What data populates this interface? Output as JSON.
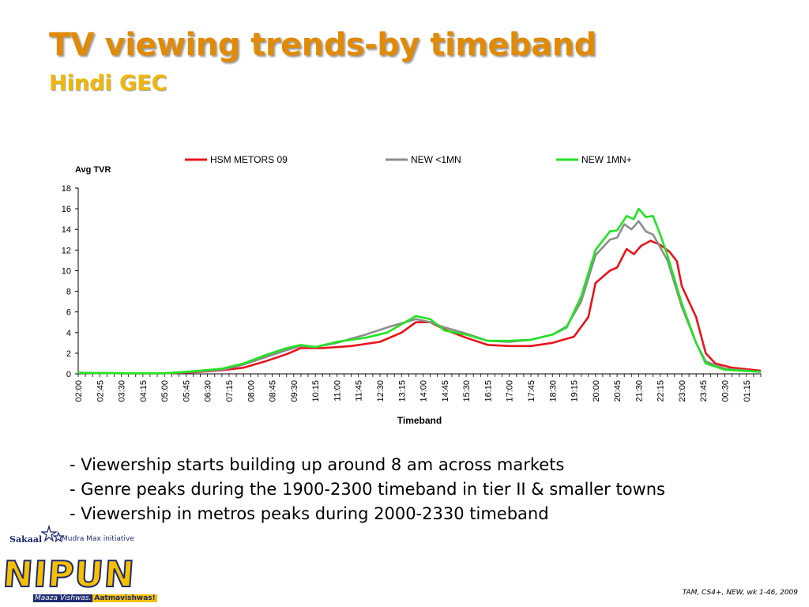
{
  "slide": {
    "title": "TV viewing trends-by timeband",
    "subtitle": "Hindi GEC",
    "bullets": [
      "- Viewership starts building up around 8 am across markets",
      "- Genre peaks during the 1900-2300 timeband in tier II & smaller towns",
      "- Viewership in metros peaks during 2000-2330 timeband"
    ],
    "source": "TAM, CS4+, NEW, wk 1-46, 2009",
    "logo": {
      "brand": "Sakaal",
      "initiative": "Mudra Max initiative",
      "name": "NIPUN",
      "tagline_part1": "Maaza Vishwas.",
      "tagline_part2": "Aatmavishwas!"
    }
  },
  "colors": {
    "title": "#e08a06",
    "subtitle": "#f2b705",
    "hsm": "#e8141b",
    "new_lt_1mn": "#8c8c8c",
    "new_1mn_plus": "#22e322"
  },
  "chart_data": {
    "type": "line",
    "ylabel": "Avg TVR",
    "xlabel": "Timeband",
    "ylim": [
      0,
      18
    ],
    "y_ticks": [
      0,
      2,
      4,
      6,
      8,
      10,
      12,
      14,
      16,
      18
    ],
    "x_tick_labels": [
      "02:00",
      "02:45",
      "03:30",
      "04:15",
      "05:00",
      "05:45",
      "06:30",
      "07:15",
      "08:00",
      "08:45",
      "09:30",
      "10:15",
      "11:00",
      "11:45",
      "12:30",
      "13:15",
      "14:00",
      "14:45",
      "15:30",
      "16:15",
      "17:00",
      "17:45",
      "18:30",
      "19:15",
      "20:00",
      "20:45",
      "21:30",
      "22:15",
      "23:00",
      "23:45",
      "00:30",
      "01:15"
    ],
    "x_tick_interval_minutes": 45,
    "x_range": [
      "02:00",
      "01:45"
    ],
    "legend_position": "top",
    "grid": false,
    "series": [
      {
        "name": "HSM METORS 09",
        "color": "#e8141b",
        "points": [
          [
            "02:00",
            0.1
          ],
          [
            "03:30",
            0.05
          ],
          [
            "05:00",
            0.05
          ],
          [
            "06:00",
            0.15
          ],
          [
            "07:00",
            0.35
          ],
          [
            "07:45",
            0.6
          ],
          [
            "08:30",
            1.2
          ],
          [
            "09:15",
            1.9
          ],
          [
            "09:45",
            2.5
          ],
          [
            "10:30",
            2.5
          ],
          [
            "11:30",
            2.7
          ],
          [
            "12:30",
            3.1
          ],
          [
            "13:15",
            4.0
          ],
          [
            "13:45",
            5.0
          ],
          [
            "14:15",
            5.0
          ],
          [
            "14:45",
            4.3
          ],
          [
            "15:30",
            3.5
          ],
          [
            "16:15",
            2.8
          ],
          [
            "17:00",
            2.7
          ],
          [
            "17:45",
            2.7
          ],
          [
            "18:30",
            3.0
          ],
          [
            "19:15",
            3.6
          ],
          [
            "19:45",
            5.5
          ],
          [
            "20:00",
            8.8
          ],
          [
            "20:30",
            10.0
          ],
          [
            "20:45",
            10.3
          ],
          [
            "21:05",
            12.1
          ],
          [
            "21:20",
            11.6
          ],
          [
            "21:35",
            12.4
          ],
          [
            "21:55",
            12.9
          ],
          [
            "22:15",
            12.5
          ],
          [
            "22:35",
            11.8
          ],
          [
            "22:50",
            10.9
          ],
          [
            "23:00",
            8.5
          ],
          [
            "23:30",
            5.5
          ],
          [
            "23:50",
            2.0
          ],
          [
            "00:10",
            1.0
          ],
          [
            "00:45",
            0.6
          ],
          [
            "01:45",
            0.3
          ]
        ]
      },
      {
        "name": "NEW <1MN",
        "color": "#8c8c8c",
        "points": [
          [
            "02:00",
            0.1
          ],
          [
            "03:30",
            0.05
          ],
          [
            "05:00",
            0.05
          ],
          [
            "06:00",
            0.2
          ],
          [
            "07:00",
            0.4
          ],
          [
            "07:45",
            0.9
          ],
          [
            "08:30",
            1.6
          ],
          [
            "09:15",
            2.3
          ],
          [
            "09:45",
            2.7
          ],
          [
            "10:15",
            2.6
          ],
          [
            "11:00",
            3.0
          ],
          [
            "12:00",
            3.8
          ],
          [
            "12:45",
            4.5
          ],
          [
            "13:15",
            4.9
          ],
          [
            "13:45",
            5.3
          ],
          [
            "14:15",
            5.0
          ],
          [
            "14:45",
            4.5
          ],
          [
            "15:30",
            3.9
          ],
          [
            "16:15",
            3.2
          ],
          [
            "17:00",
            3.1
          ],
          [
            "17:45",
            3.3
          ],
          [
            "18:30",
            3.8
          ],
          [
            "19:00",
            4.6
          ],
          [
            "19:30",
            7.0
          ],
          [
            "20:00",
            11.5
          ],
          [
            "20:30",
            13.0
          ],
          [
            "20:45",
            13.2
          ],
          [
            "21:00",
            14.5
          ],
          [
            "21:15",
            14.0
          ],
          [
            "21:30",
            14.8
          ],
          [
            "21:45",
            13.8
          ],
          [
            "22:00",
            13.5
          ],
          [
            "22:30",
            11.0
          ],
          [
            "23:00",
            6.5
          ],
          [
            "23:30",
            3.0
          ],
          [
            "23:50",
            1.2
          ],
          [
            "00:30",
            0.5
          ],
          [
            "01:45",
            0.2
          ]
        ]
      },
      {
        "name": "NEW 1MN+",
        "color": "#22e322",
        "points": [
          [
            "02:00",
            0.1
          ],
          [
            "03:30",
            0.05
          ],
          [
            "05:00",
            0.05
          ],
          [
            "06:00",
            0.25
          ],
          [
            "07:00",
            0.5
          ],
          [
            "07:45",
            1.0
          ],
          [
            "08:30",
            1.8
          ],
          [
            "09:15",
            2.5
          ],
          [
            "09:45",
            2.8
          ],
          [
            "10:15",
            2.6
          ],
          [
            "11:00",
            3.1
          ],
          [
            "12:00",
            3.5
          ],
          [
            "12:45",
            4.0
          ],
          [
            "13:15",
            4.8
          ],
          [
            "13:45",
            5.6
          ],
          [
            "14:15",
            5.3
          ],
          [
            "14:45",
            4.2
          ],
          [
            "15:30",
            3.8
          ],
          [
            "16:15",
            3.2
          ],
          [
            "17:00",
            3.2
          ],
          [
            "17:45",
            3.3
          ],
          [
            "18:30",
            3.8
          ],
          [
            "19:00",
            4.5
          ],
          [
            "19:30",
            7.5
          ],
          [
            "20:00",
            12.0
          ],
          [
            "20:30",
            13.8
          ],
          [
            "20:45",
            13.9
          ],
          [
            "21:05",
            15.3
          ],
          [
            "21:20",
            15.0
          ],
          [
            "21:30",
            16.0
          ],
          [
            "21:45",
            15.2
          ],
          [
            "22:00",
            15.3
          ],
          [
            "22:15",
            13.5
          ],
          [
            "22:30",
            11.5
          ],
          [
            "23:00",
            6.8
          ],
          [
            "23:30",
            3.0
          ],
          [
            "23:50",
            1.0
          ],
          [
            "00:30",
            0.4
          ],
          [
            "01:45",
            0.2
          ]
        ]
      }
    ]
  }
}
